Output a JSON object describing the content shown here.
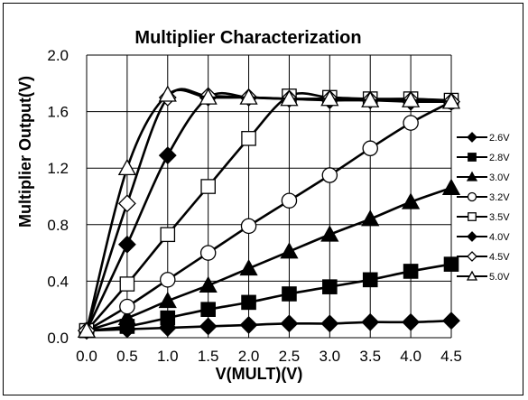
{
  "chart_data": {
    "type": "line",
    "title": "Multiplier Characterization",
    "xlabel": "V(MULT)(V)",
    "ylabel": "Multiplier Output(V)",
    "xlim": [
      0.0,
      4.5
    ],
    "ylim": [
      0.0,
      2.0
    ],
    "x_ticks": [
      "0.0",
      "0.5",
      "1.0",
      "1.5",
      "2.0",
      "2.5",
      "3.0",
      "3.5",
      "4.0",
      "4.5"
    ],
    "y_ticks": [
      "0.0",
      "0.4",
      "0.8",
      "1.2",
      "1.6",
      "2.0"
    ],
    "grid": true,
    "legend_position": "right",
    "series": [
      {
        "name": "2.6V",
        "marker": "diamond-filled",
        "x": [
          0.0,
          0.5,
          1.0,
          1.5,
          2.0,
          2.5,
          3.0,
          3.5,
          4.0,
          4.5
        ],
        "y": [
          0.05,
          0.06,
          0.07,
          0.08,
          0.09,
          0.1,
          0.1,
          0.11,
          0.11,
          0.12
        ]
      },
      {
        "name": "2.8V",
        "marker": "square-filled",
        "x": [
          0.0,
          0.5,
          1.0,
          1.5,
          2.0,
          2.5,
          3.0,
          3.5,
          4.0,
          4.5
        ],
        "y": [
          0.05,
          0.08,
          0.14,
          0.2,
          0.25,
          0.31,
          0.36,
          0.41,
          0.47,
          0.52
        ]
      },
      {
        "name": "3.0V",
        "marker": "triangle-filled",
        "x": [
          0.0,
          0.5,
          1.0,
          1.5,
          2.0,
          2.5,
          3.0,
          3.5,
          4.0,
          4.5
        ],
        "y": [
          0.05,
          0.14,
          0.26,
          0.37,
          0.49,
          0.61,
          0.73,
          0.84,
          0.96,
          1.06
        ]
      },
      {
        "name": "3.2V",
        "marker": "circle-open",
        "x": [
          0.0,
          0.5,
          1.0,
          1.5,
          2.0,
          2.5,
          3.0,
          3.5,
          4.0,
          4.5
        ],
        "y": [
          0.05,
          0.22,
          0.41,
          0.6,
          0.79,
          0.97,
          1.15,
          1.34,
          1.52,
          1.67
        ]
      },
      {
        "name": "3.5V",
        "marker": "square-open",
        "x": [
          0.0,
          0.5,
          1.0,
          1.5,
          2.0,
          2.5,
          3.0,
          3.5,
          4.0,
          4.5
        ],
        "y": [
          0.05,
          0.38,
          0.73,
          1.07,
          1.41,
          1.71,
          1.7,
          1.69,
          1.69,
          1.68
        ]
      },
      {
        "name": "4.0V",
        "marker": "diamond-filled",
        "x": [
          0.0,
          0.5,
          1.0,
          1.5,
          2.0,
          2.5,
          3.0,
          3.5,
          4.0,
          4.5
        ],
        "y": [
          0.05,
          0.66,
          1.29,
          1.7,
          1.7,
          1.69,
          1.68,
          1.68,
          1.67,
          1.67
        ]
      },
      {
        "name": "4.5V",
        "marker": "diamond-open",
        "x": [
          0.0,
          0.5,
          1.0,
          1.5,
          2.0,
          2.5,
          3.0,
          3.5,
          4.0,
          4.5
        ],
        "y": [
          0.05,
          0.95,
          1.7,
          1.71,
          1.7,
          1.69,
          1.69,
          1.68,
          1.68,
          1.67
        ]
      },
      {
        "name": "5.0V",
        "marker": "triangle-open",
        "x": [
          0.0,
          0.5,
          1.0,
          1.5,
          2.0,
          2.5,
          3.0,
          3.5,
          4.0,
          4.5
        ],
        "y": [
          0.05,
          1.2,
          1.72,
          1.7,
          1.7,
          1.69,
          1.69,
          1.68,
          1.68,
          1.67
        ]
      }
    ]
  }
}
